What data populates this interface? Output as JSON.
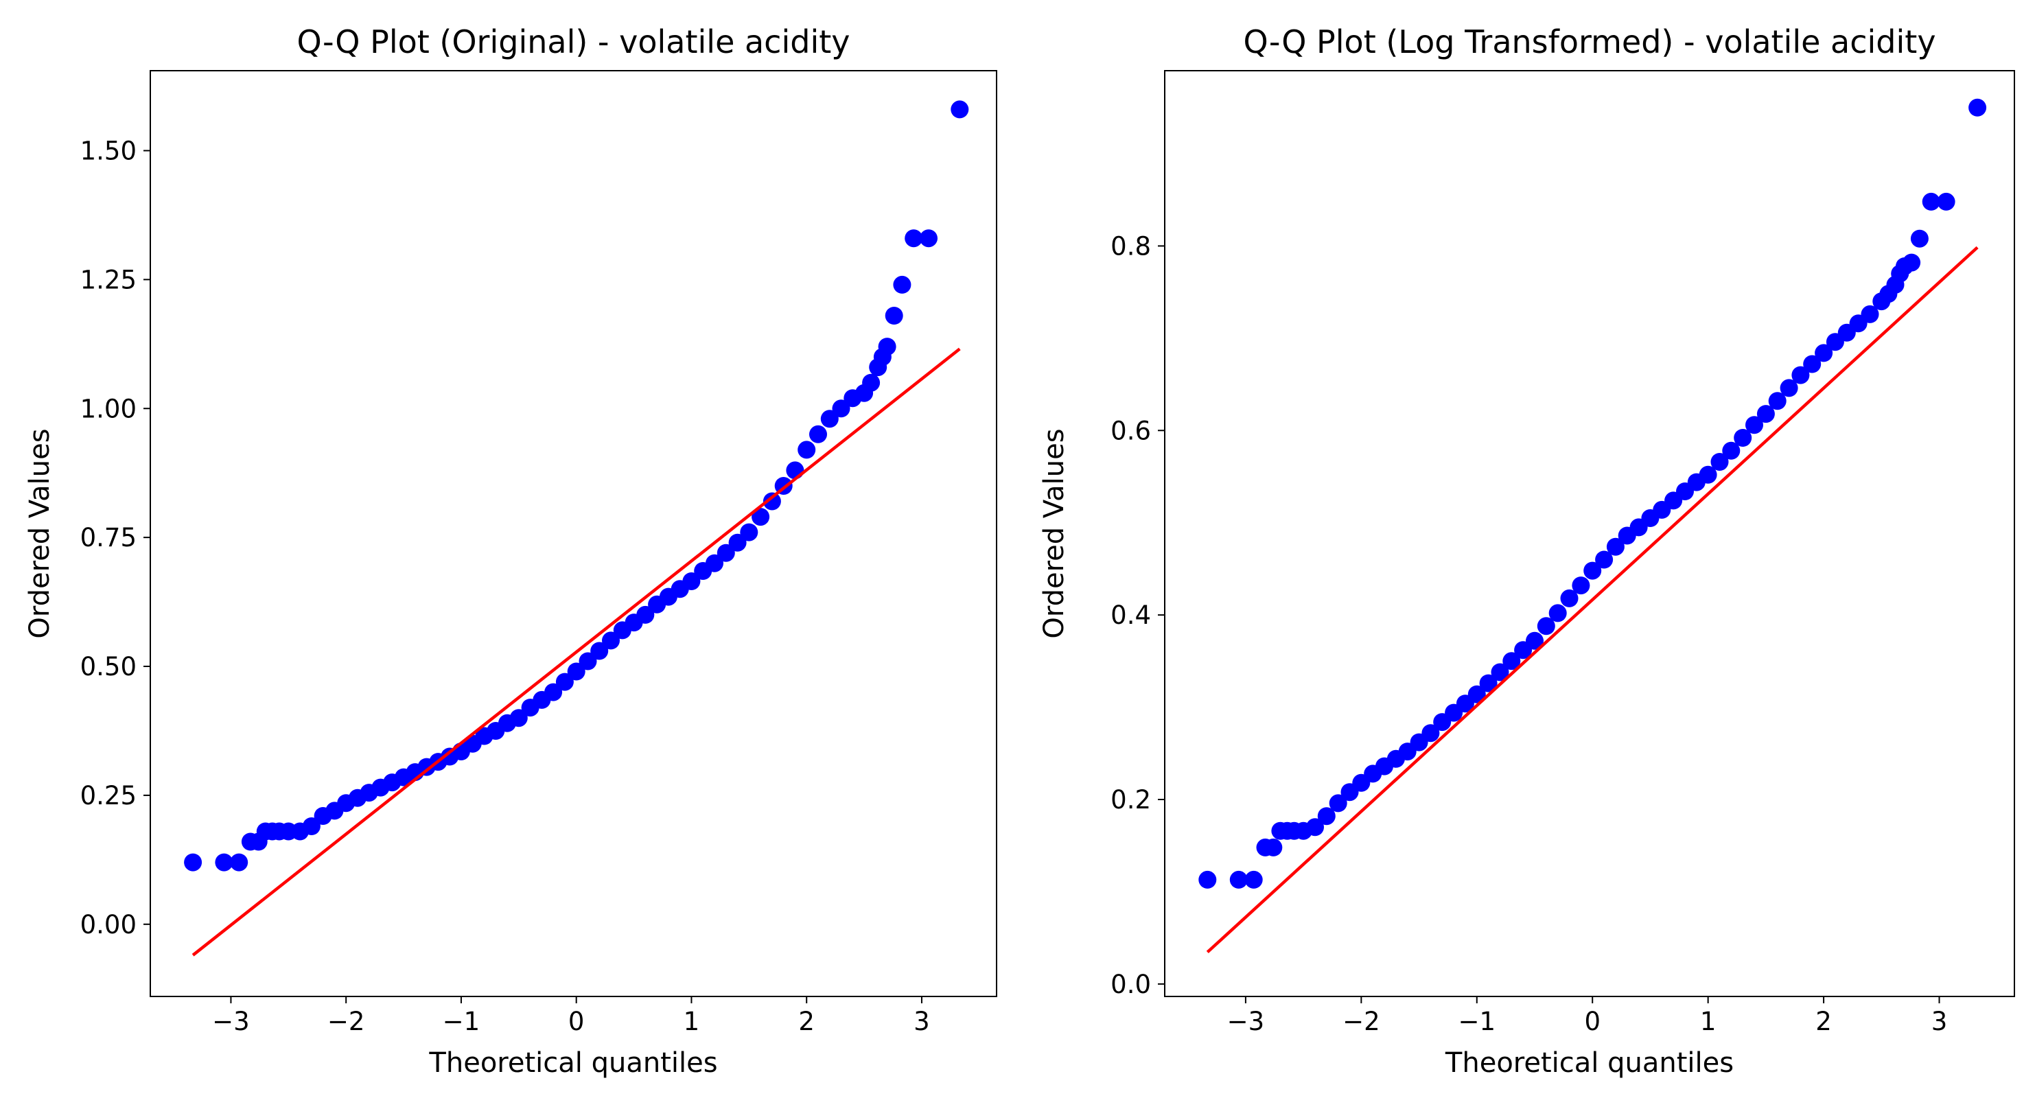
{
  "figure": {
    "background": "#ffffff",
    "text_color": "#000000"
  },
  "chart_data": [
    {
      "type": "scatter",
      "title": "Q-Q Plot (Original) - volatile acidity",
      "xlabel": "Theoretical quantiles",
      "ylabel": "Ordered Values",
      "xlim": [
        -3.7,
        3.65
      ],
      "ylim": [
        -0.14,
        1.655
      ],
      "xticks": [
        -3,
        -2,
        -1,
        0,
        1,
        2,
        3
      ],
      "yticks": [
        0.0,
        0.25,
        0.5,
        0.75,
        1.0,
        1.25,
        1.5
      ],
      "ytick_labels": [
        "0.00",
        "0.25",
        "0.50",
        "0.75",
        "1.00",
        "1.25",
        "1.50"
      ],
      "grid": false,
      "point_color": "#0000ff",
      "line_color": "#ff0000",
      "fit_line": {
        "slope": 0.1765,
        "intercept": 0.5278,
        "x_range": [
          -3.33,
          3.33
        ]
      },
      "series": [
        {
          "name": "ordered values",
          "x": [
            -3.33,
            -3.06,
            -2.93,
            -2.83,
            -2.76,
            -2.7,
            -2.64,
            -2.58,
            -2.5,
            -2.4,
            -2.3,
            -2.2,
            -2.1,
            -2.0,
            -1.9,
            -1.8,
            -1.7,
            -1.6,
            -1.5,
            -1.4,
            -1.3,
            -1.2,
            -1.1,
            -1.0,
            -0.9,
            -0.8,
            -0.7,
            -0.6,
            -0.5,
            -0.4,
            -0.3,
            -0.2,
            -0.1,
            0.0,
            0.1,
            0.2,
            0.3,
            0.4,
            0.5,
            0.6,
            0.7,
            0.8,
            0.9,
            1.0,
            1.1,
            1.2,
            1.3,
            1.4,
            1.5,
            1.6,
            1.7,
            1.8,
            1.9,
            2.0,
            2.1,
            2.2,
            2.3,
            2.4,
            2.5,
            2.56,
            2.62,
            2.66,
            2.7,
            2.76,
            2.83,
            2.93,
            3.06,
            3.33
          ],
          "y": [
            0.12,
            0.12,
            0.12,
            0.16,
            0.16,
            0.18,
            0.18,
            0.18,
            0.18,
            0.18,
            0.19,
            0.21,
            0.22,
            0.235,
            0.245,
            0.255,
            0.265,
            0.275,
            0.285,
            0.295,
            0.305,
            0.315,
            0.325,
            0.335,
            0.35,
            0.365,
            0.375,
            0.39,
            0.4,
            0.42,
            0.435,
            0.45,
            0.47,
            0.49,
            0.51,
            0.53,
            0.55,
            0.57,
            0.585,
            0.6,
            0.62,
            0.635,
            0.65,
            0.665,
            0.685,
            0.7,
            0.72,
            0.74,
            0.76,
            0.79,
            0.82,
            0.85,
            0.88,
            0.92,
            0.95,
            0.98,
            1.0,
            1.02,
            1.03,
            1.05,
            1.08,
            1.1,
            1.12,
            1.18,
            1.24,
            1.33,
            1.33,
            1.58
          ]
        }
      ]
    },
    {
      "type": "scatter",
      "title": "Q-Q Plot (Log Transformed) - volatile acidity",
      "xlabel": "Theoretical quantiles",
      "ylabel": "Ordered Values",
      "xlim": [
        -3.7,
        3.65
      ],
      "ylim": [
        -0.0135,
        0.99
      ],
      "xticks": [
        -3,
        -2,
        -1,
        0,
        1,
        2,
        3
      ],
      "yticks": [
        0.0,
        0.2,
        0.4,
        0.6,
        0.8
      ],
      "ytick_labels": [
        "0.0",
        "0.2",
        "0.4",
        "0.6",
        "0.8"
      ],
      "grid": false,
      "point_color": "#0000ff",
      "line_color": "#ff0000",
      "fit_line": {
        "slope": 0.1147,
        "intercept": 0.4165,
        "x_range": [
          -3.33,
          3.33
        ]
      },
      "series": [
        {
          "name": "ordered values",
          "x": [
            -3.33,
            -3.06,
            -2.93,
            -2.83,
            -2.76,
            -2.7,
            -2.64,
            -2.58,
            -2.5,
            -2.4,
            -2.3,
            -2.2,
            -2.1,
            -2.0,
            -1.9,
            -1.8,
            -1.7,
            -1.6,
            -1.5,
            -1.4,
            -1.3,
            -1.2,
            -1.1,
            -1.0,
            -0.9,
            -0.8,
            -0.7,
            -0.6,
            -0.5,
            -0.4,
            -0.3,
            -0.2,
            -0.1,
            0.0,
            0.1,
            0.2,
            0.3,
            0.4,
            0.5,
            0.6,
            0.7,
            0.8,
            0.9,
            1.0,
            1.1,
            1.2,
            1.3,
            1.4,
            1.5,
            1.6,
            1.7,
            1.8,
            1.9,
            2.0,
            2.1,
            2.2,
            2.3,
            2.4,
            2.5,
            2.56,
            2.62,
            2.66,
            2.7,
            2.76,
            2.83,
            2.93,
            3.06,
            3.33
          ],
          "y": [
            0.113,
            0.113,
            0.113,
            0.148,
            0.148,
            0.166,
            0.166,
            0.166,
            0.166,
            0.17,
            0.182,
            0.196,
            0.208,
            0.218,
            0.228,
            0.236,
            0.244,
            0.252,
            0.262,
            0.272,
            0.284,
            0.294,
            0.304,
            0.314,
            0.326,
            0.338,
            0.35,
            0.362,
            0.372,
            0.388,
            0.402,
            0.418,
            0.432,
            0.448,
            0.46,
            0.474,
            0.486,
            0.495,
            0.505,
            0.514,
            0.524,
            0.534,
            0.544,
            0.552,
            0.566,
            0.578,
            0.592,
            0.606,
            0.618,
            0.632,
            0.646,
            0.66,
            0.672,
            0.684,
            0.696,
            0.706,
            0.716,
            0.726,
            0.74,
            0.748,
            0.758,
            0.77,
            0.778,
            0.782,
            0.808,
            0.848,
            0.848,
            0.95
          ]
        }
      ]
    }
  ]
}
